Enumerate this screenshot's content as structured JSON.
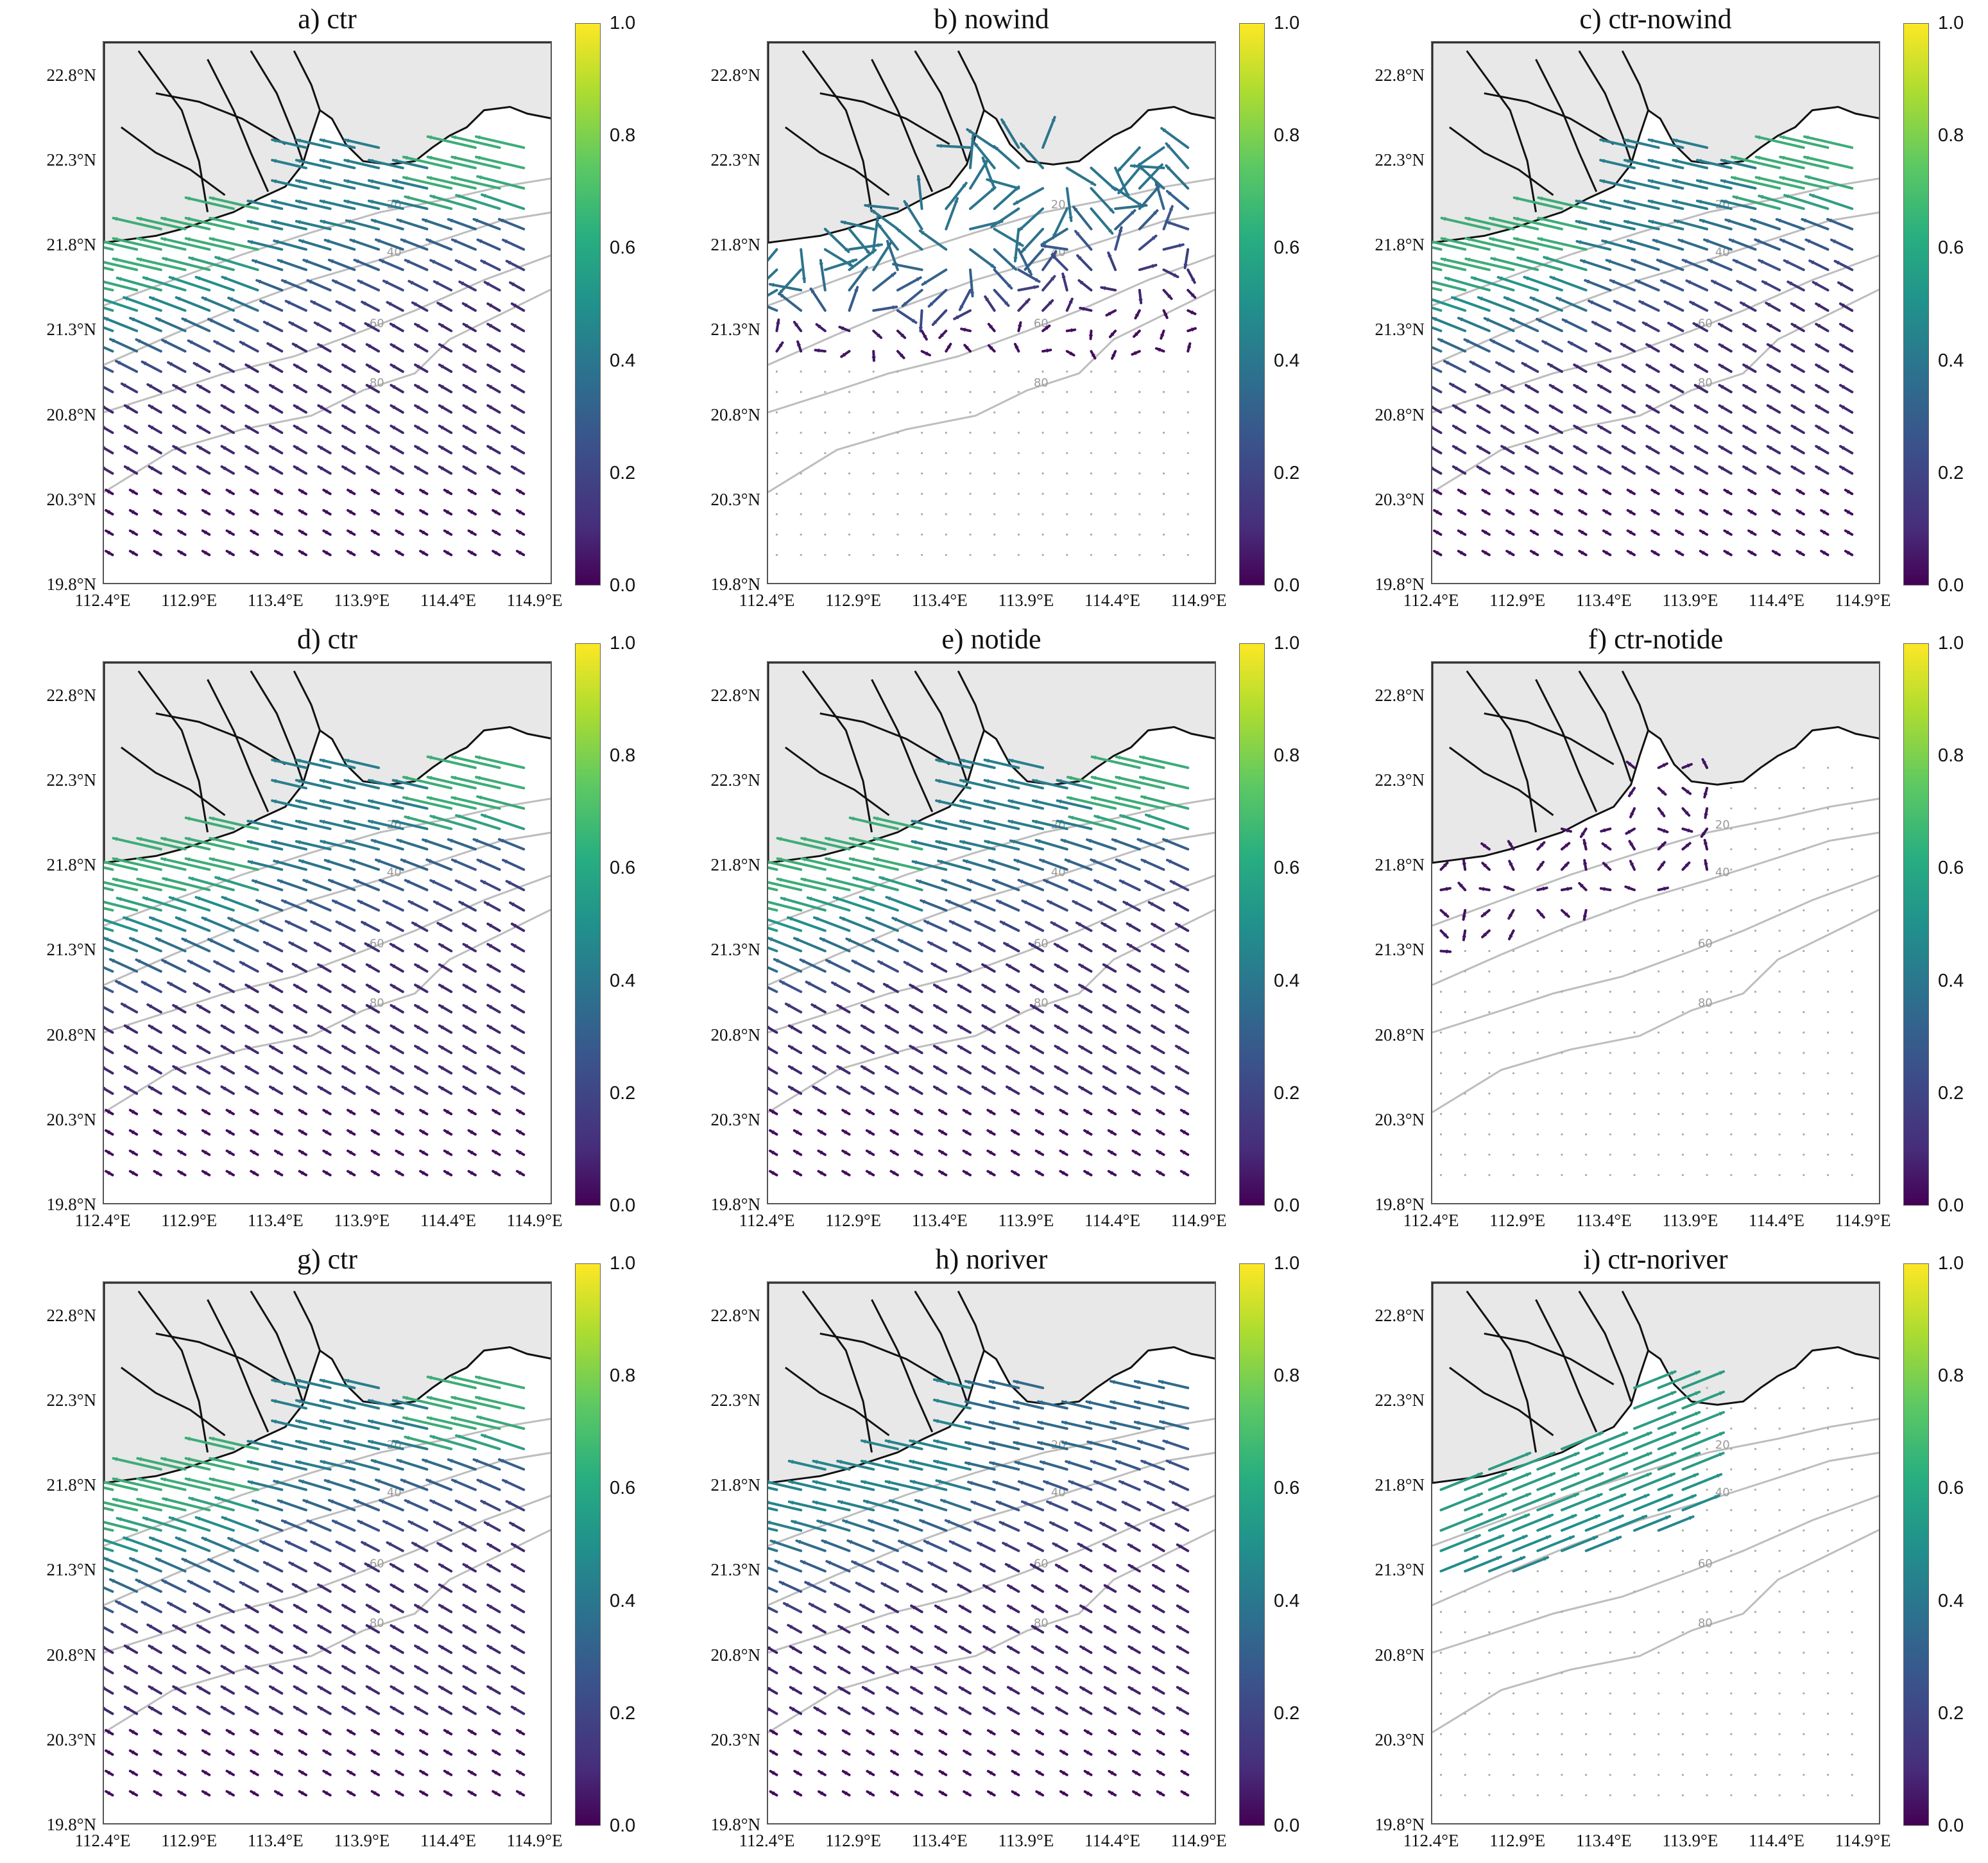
{
  "figure": {
    "lat_labels": [
      "22.8°N",
      "22.3°N",
      "21.8°N",
      "21.3°N",
      "20.8°N",
      "20.3°N",
      "19.8°N"
    ],
    "lon_labels": [
      "112.4°E",
      "112.9°E",
      "113.4°E",
      "113.9°E",
      "114.4°E",
      "114.9°E"
    ],
    "lat_range": [
      19.8,
      23.0
    ],
    "lon_range": [
      112.4,
      115.0
    ],
    "colorbar": {
      "ticks": [
        "1.0",
        "0.8",
        "0.6",
        "0.4",
        "0.2",
        "0.0"
      ],
      "range": [
        0.0,
        1.0
      ],
      "colormap": [
        "#440154",
        "#3b528b",
        "#21918c",
        "#5ec962",
        "#fde725"
      ]
    },
    "land_color": "#e8e8e8",
    "contour_labels": [
      "20",
      "40",
      "60",
      "80"
    ],
    "panels": [
      {
        "title": "a) ctr",
        "field": "full"
      },
      {
        "title": "b) nowind",
        "field": "nowind"
      },
      {
        "title": "c) ctr-nowind",
        "field": "full"
      },
      {
        "title": "d) ctr",
        "field": "full"
      },
      {
        "title": "e) notide",
        "field": "full"
      },
      {
        "title": "f) ctr-notide",
        "field": "tiny"
      },
      {
        "title": "g) ctr",
        "field": "full"
      },
      {
        "title": "h) noriver",
        "field": "noriver"
      },
      {
        "title": "i) ctr-noriver",
        "field": "riverdiff"
      }
    ]
  }
}
